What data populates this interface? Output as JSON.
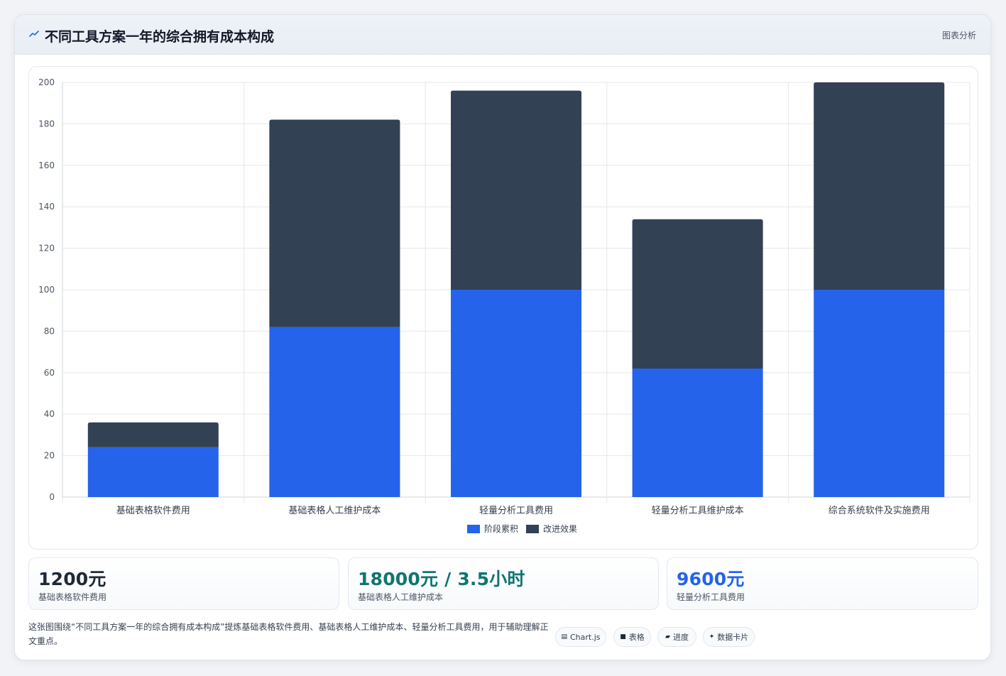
{
  "header": {
    "title": "不同工具方案一年的综合拥有成本构成",
    "tag": "图表分析",
    "icon": "trend-line-icon",
    "accent": "#2563eb"
  },
  "chart_data": {
    "type": "bar",
    "stacked": true,
    "title": "",
    "xlabel": "",
    "ylabel": "",
    "categories": [
      "基础表格软件费用",
      "基础表格人工维护成本",
      "轻量分析工具费用",
      "轻量分析工具维护成本",
      "综合系统软件及实施费用"
    ],
    "series": [
      {
        "name": "阶段累积",
        "color": "#2563eb",
        "values": [
          24,
          82,
          100,
          62,
          100
        ]
      },
      {
        "name": "改进效果",
        "color": "#334155",
        "values": [
          12,
          100,
          96,
          72,
          100
        ]
      }
    ],
    "ylim": [
      0,
      200
    ],
    "yticks": [
      0,
      20,
      40,
      60,
      80,
      100,
      120,
      140,
      160,
      180,
      200
    ],
    "grid": true,
    "legend_position": "bottom"
  },
  "stats": [
    {
      "value": "1200元",
      "label": "基础表格软件费用",
      "color": "#1f2937"
    },
    {
      "value": "18000元 / 3.5小时",
      "label": "基础表格人工维护成本",
      "color": "#0f766e"
    },
    {
      "value": "9600元",
      "label": "轻量分析工具费用",
      "color": "#2563eb"
    }
  ],
  "caption": "这张图围绕“不同工具方案一年的综合拥有成本构成”提炼基础表格软件费用、基础表格人工维护成本、轻量分析工具费用，用于辅助理解正文重点。",
  "chips": [
    {
      "icon": "chart-icon",
      "glyph": "▤",
      "label": "Chart.js"
    },
    {
      "icon": "table-icon",
      "glyph": "■",
      "label": "表格"
    },
    {
      "icon": "progress-icon",
      "glyph": "▰",
      "label": "进度"
    },
    {
      "icon": "data-card-icon",
      "glyph": "✦",
      "label": "数据卡片"
    }
  ]
}
